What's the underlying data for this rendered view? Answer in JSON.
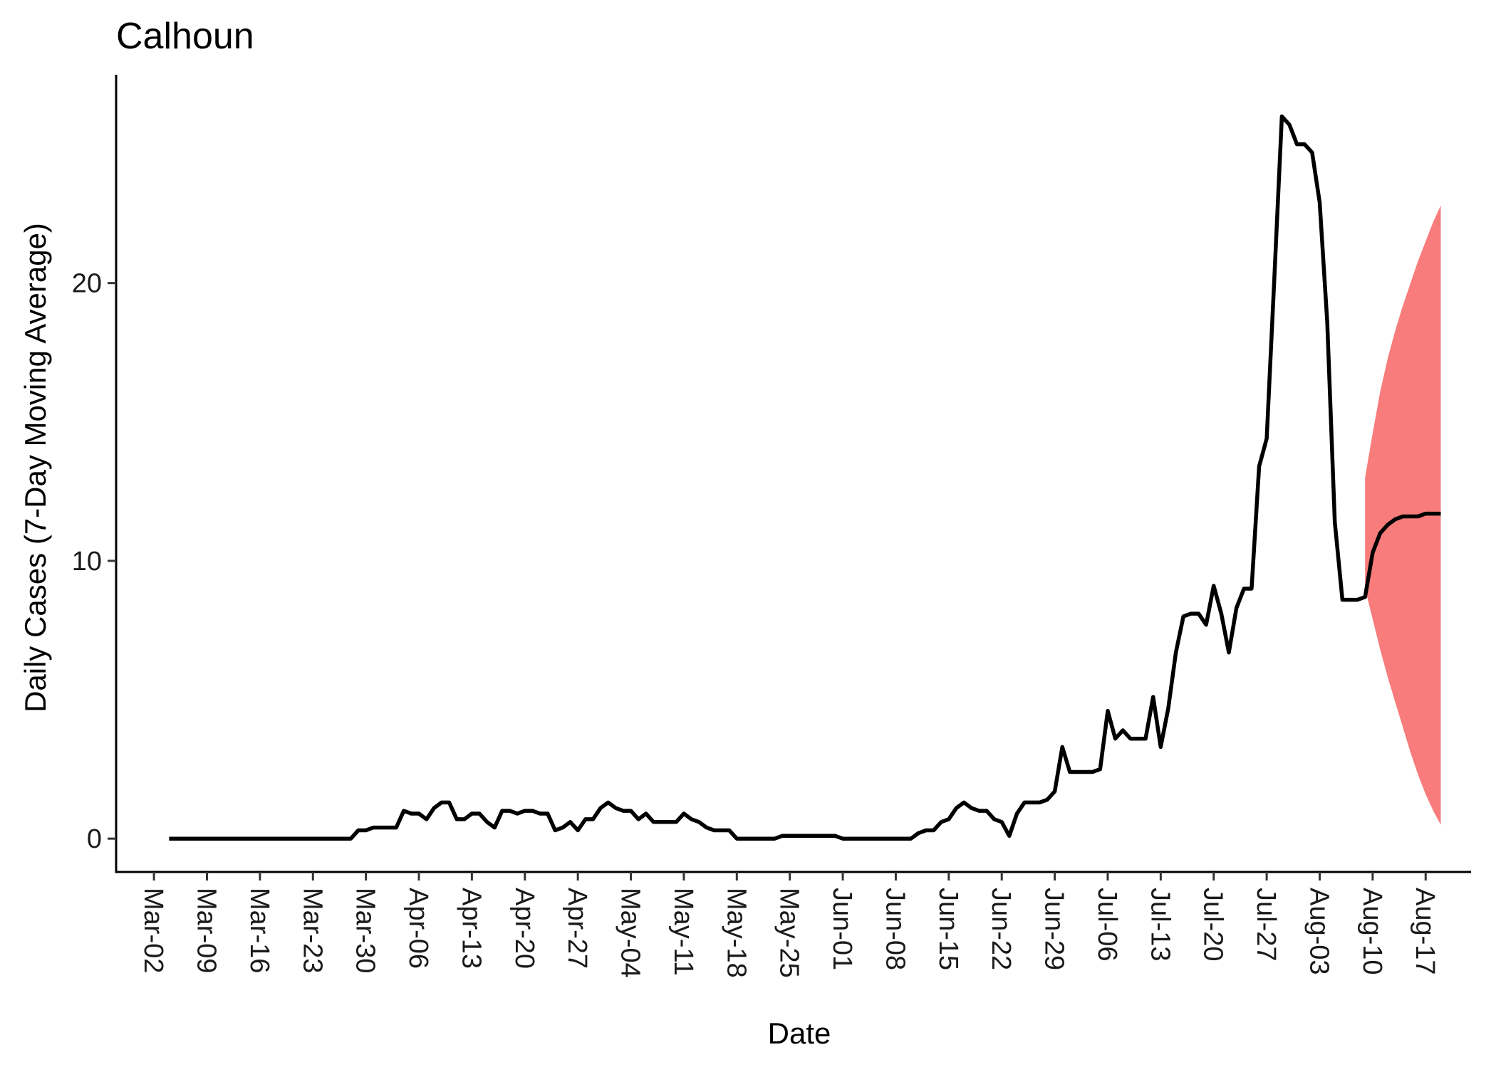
{
  "chart_data": {
    "type": "line",
    "title": "Calhoun",
    "xlabel": "Date",
    "ylabel": "Daily Cases (7-Day Moving Average)",
    "x_ticks": [
      "Mar-02",
      "Mar-09",
      "Mar-16",
      "Mar-23",
      "Mar-30",
      "Apr-06",
      "Apr-13",
      "Apr-20",
      "Apr-27",
      "May-04",
      "May-11",
      "May-18",
      "May-25",
      "Jun-01",
      "Jun-08",
      "Jun-15",
      "Jun-22",
      "Jun-29",
      "Jul-06",
      "Jul-13",
      "Jul-20",
      "Jul-27",
      "Aug-03",
      "Aug-10",
      "Aug-17"
    ],
    "x_tick_start": "2020-03-02",
    "x_range": [
      "2020-02-26",
      "2020-08-23"
    ],
    "y_ticks": [
      0,
      10,
      20
    ],
    "ylim": [
      -1.2,
      27.5
    ],
    "grid": false,
    "legend": "none",
    "colors": {
      "line": "#000000",
      "band": "#f87c7c"
    },
    "series": [
      {
        "values": [
          [
            "2020-03-04",
            0
          ],
          [
            "2020-03-28",
            0
          ],
          [
            "2020-03-29",
            0.3
          ],
          [
            "2020-03-30",
            0.3
          ],
          [
            "2020-03-31",
            0.4
          ],
          [
            "2020-04-01",
            0.4
          ],
          [
            "2020-04-02",
            0.4
          ],
          [
            "2020-04-03",
            0.4
          ],
          [
            "2020-04-04",
            1.0
          ],
          [
            "2020-04-05",
            0.9
          ],
          [
            "2020-04-06",
            0.9
          ],
          [
            "2020-04-07",
            0.7
          ],
          [
            "2020-04-08",
            1.1
          ],
          [
            "2020-04-09",
            1.3
          ],
          [
            "2020-04-10",
            1.3
          ],
          [
            "2020-04-11",
            0.7
          ],
          [
            "2020-04-12",
            0.7
          ],
          [
            "2020-04-13",
            0.9
          ],
          [
            "2020-04-14",
            0.9
          ],
          [
            "2020-04-15",
            0.6
          ],
          [
            "2020-04-16",
            0.4
          ],
          [
            "2020-04-17",
            1.0
          ],
          [
            "2020-04-18",
            1.0
          ],
          [
            "2020-04-19",
            0.9
          ],
          [
            "2020-04-20",
            1.0
          ],
          [
            "2020-04-21",
            1.0
          ],
          [
            "2020-04-22",
            0.9
          ],
          [
            "2020-04-23",
            0.9
          ],
          [
            "2020-04-24",
            0.3
          ],
          [
            "2020-04-25",
            0.4
          ],
          [
            "2020-04-26",
            0.6
          ],
          [
            "2020-04-27",
            0.3
          ],
          [
            "2020-04-28",
            0.7
          ],
          [
            "2020-04-29",
            0.7
          ],
          [
            "2020-04-30",
            1.1
          ],
          [
            "2020-05-01",
            1.3
          ],
          [
            "2020-05-02",
            1.1
          ],
          [
            "2020-05-03",
            1.0
          ],
          [
            "2020-05-04",
            1.0
          ],
          [
            "2020-05-05",
            0.7
          ],
          [
            "2020-05-06",
            0.9
          ],
          [
            "2020-05-07",
            0.6
          ],
          [
            "2020-05-08",
            0.6
          ],
          [
            "2020-05-09",
            0.6
          ],
          [
            "2020-05-10",
            0.6
          ],
          [
            "2020-05-11",
            0.9
          ],
          [
            "2020-05-12",
            0.7
          ],
          [
            "2020-05-13",
            0.6
          ],
          [
            "2020-05-14",
            0.4
          ],
          [
            "2020-05-15",
            0.3
          ],
          [
            "2020-05-16",
            0.3
          ],
          [
            "2020-05-17",
            0.3
          ],
          [
            "2020-05-18",
            0
          ],
          [
            "2020-05-23",
            0
          ],
          [
            "2020-05-24",
            0.1
          ],
          [
            "2020-05-31",
            0.1
          ],
          [
            "2020-06-01",
            0
          ],
          [
            "2020-06-10",
            0
          ],
          [
            "2020-06-11",
            0.2
          ],
          [
            "2020-06-12",
            0.3
          ],
          [
            "2020-06-13",
            0.3
          ],
          [
            "2020-06-14",
            0.6
          ],
          [
            "2020-06-15",
            0.7
          ],
          [
            "2020-06-16",
            1.1
          ],
          [
            "2020-06-17",
            1.3
          ],
          [
            "2020-06-18",
            1.1
          ],
          [
            "2020-06-19",
            1.0
          ],
          [
            "2020-06-20",
            1.0
          ],
          [
            "2020-06-21",
            0.7
          ],
          [
            "2020-06-22",
            0.6
          ],
          [
            "2020-06-23",
            0.1
          ],
          [
            "2020-06-24",
            0.9
          ],
          [
            "2020-06-25",
            1.3
          ],
          [
            "2020-06-26",
            1.3
          ],
          [
            "2020-06-27",
            1.3
          ],
          [
            "2020-06-28",
            1.4
          ],
          [
            "2020-06-29",
            1.7
          ],
          [
            "2020-06-30",
            3.3
          ],
          [
            "2020-07-01",
            2.4
          ],
          [
            "2020-07-02",
            2.4
          ],
          [
            "2020-07-03",
            2.4
          ],
          [
            "2020-07-04",
            2.4
          ],
          [
            "2020-07-05",
            2.5
          ],
          [
            "2020-07-06",
            4.6
          ],
          [
            "2020-07-07",
            3.6
          ],
          [
            "2020-07-08",
            3.9
          ],
          [
            "2020-07-09",
            3.6
          ],
          [
            "2020-07-10",
            3.6
          ],
          [
            "2020-07-11",
            3.6
          ],
          [
            "2020-07-12",
            5.1
          ],
          [
            "2020-07-13",
            3.3
          ],
          [
            "2020-07-14",
            4.7
          ],
          [
            "2020-07-15",
            6.7
          ],
          [
            "2020-07-16",
            8.0
          ],
          [
            "2020-07-17",
            8.1
          ],
          [
            "2020-07-18",
            8.1
          ],
          [
            "2020-07-19",
            7.7
          ],
          [
            "2020-07-20",
            9.1
          ],
          [
            "2020-07-21",
            8.1
          ],
          [
            "2020-07-22",
            6.7
          ],
          [
            "2020-07-23",
            8.3
          ],
          [
            "2020-07-24",
            9.0
          ],
          [
            "2020-07-25",
            9.0
          ],
          [
            "2020-07-26",
            13.4
          ],
          [
            "2020-07-27",
            14.4
          ],
          [
            "2020-07-28",
            20.1
          ],
          [
            "2020-07-29",
            26.0
          ],
          [
            "2020-07-30",
            25.7
          ],
          [
            "2020-07-31",
            25.0
          ],
          [
            "2020-08-01",
            25.0
          ],
          [
            "2020-08-02",
            24.7
          ],
          [
            "2020-08-03",
            22.9
          ],
          [
            "2020-08-04",
            18.6
          ],
          [
            "2020-08-05",
            11.4
          ],
          [
            "2020-08-06",
            8.6
          ],
          [
            "2020-08-07",
            8.6
          ],
          [
            "2020-08-08",
            8.6
          ],
          [
            "2020-08-09",
            8.7
          ],
          [
            "2020-08-10",
            10.3
          ],
          [
            "2020-08-11",
            11.0
          ],
          [
            "2020-08-12",
            11.3
          ],
          [
            "2020-08-13",
            11.5
          ],
          [
            "2020-08-14",
            11.6
          ],
          [
            "2020-08-15",
            11.6
          ],
          [
            "2020-08-16",
            11.6
          ],
          [
            "2020-08-17",
            11.7
          ],
          [
            "2020-08-18",
            11.7
          ],
          [
            "2020-08-19",
            11.7
          ]
        ]
      }
    ],
    "forecast_band": {
      "start": "2020-08-09",
      "end": "2020-08-19",
      "upper": [
        13.0,
        14.6,
        16.1,
        17.3,
        18.3,
        19.2,
        20.0,
        20.8,
        21.5,
        22.2,
        22.8
      ],
      "lower": [
        9.0,
        7.9,
        6.8,
        5.8,
        4.9,
        4.0,
        3.1,
        2.3,
        1.6,
        1.0,
        0.5
      ]
    }
  }
}
